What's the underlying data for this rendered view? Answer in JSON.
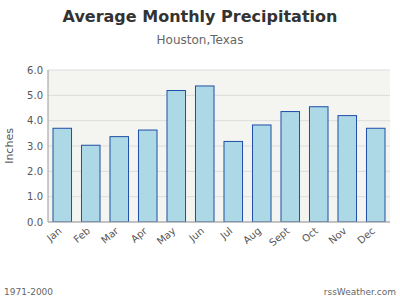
{
  "chart_data": {
    "type": "bar",
    "title": "Average Monthly Precipitation",
    "subtitle": "Houston,Texas",
    "y_label": "Inches",
    "categories": [
      "Jan",
      "Feb",
      "Mar",
      "Apr",
      "May",
      "Jun",
      "Jul",
      "Aug",
      "Sept",
      "Oct",
      "Nov",
      "Dec"
    ],
    "values": [
      3.7,
      3.03,
      3.37,
      3.63,
      5.19,
      5.37,
      3.18,
      3.83,
      4.36,
      4.55,
      4.2,
      3.7
    ],
    "color": "#add8e6",
    "ylim": [
      0.0,
      6.0
    ],
    "yticks": [
      {
        "value": 0.0,
        "label": "0.0"
      },
      {
        "value": 1.0,
        "label": "1.0"
      },
      {
        "value": 2.0,
        "label": "2.0"
      },
      {
        "value": 3.0,
        "label": "3.0"
      },
      {
        "value": 4.0,
        "label": "4.0"
      },
      {
        "value": 5.0,
        "label": "5.0"
      },
      {
        "value": 6.0,
        "label": "6.0"
      }
    ],
    "grid": true,
    "annotations": [
      "1971-2000",
      "rssWeather.com"
    ]
  }
}
